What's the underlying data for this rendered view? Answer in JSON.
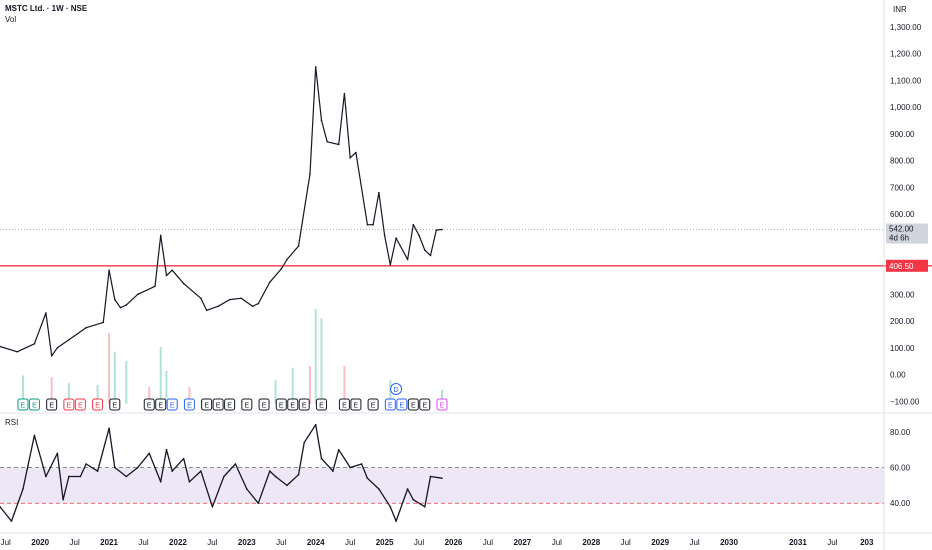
{
  "header": {
    "title": "MSTC Ltd. · 1W · NSE",
    "volume_label": "Vol",
    "currency": "INR"
  },
  "price_axis": {
    "ticks": [
      "1,300.00",
      "1,200.00",
      "1,100.00",
      "1,000.00",
      "900.00",
      "800.00",
      "700.00",
      "600.00",
      "300.00",
      "200.00",
      "100.00",
      "0.00",
      "−100.00"
    ],
    "tick_values": [
      1300,
      1200,
      1100,
      1000,
      900,
      800,
      700,
      600,
      300,
      200,
      100,
      0,
      -100
    ],
    "range": [
      -140,
      1400
    ]
  },
  "last_price": {
    "value": 542.0,
    "label": "542.00",
    "countdown": "4d 6h",
    "color": "#9598a1"
  },
  "horizontal_line": {
    "value": 406.5,
    "label": "406.50",
    "color": "#f23645"
  },
  "events": {
    "badges": [
      {
        "x": "2019-10",
        "text": "E",
        "color": "#089981"
      },
      {
        "x": "2019-12",
        "text": "E",
        "color": "#089981"
      },
      {
        "x": "2020-03",
        "text": "E",
        "color": "#131722"
      },
      {
        "x": "2020-06",
        "text": "E",
        "color": "#f23645"
      },
      {
        "x": "2020-08",
        "text": "E",
        "color": "#f23645"
      },
      {
        "x": "2020-11",
        "text": "E",
        "color": "#f23645"
      },
      {
        "x": "2021-02",
        "text": "E",
        "color": "#131722"
      },
      {
        "x": "2021-08",
        "text": "E",
        "color": "#131722"
      },
      {
        "x": "2021-10",
        "text": "E",
        "color": "#131722"
      },
      {
        "x": "2021-12",
        "text": "E",
        "color": "#2962ff"
      },
      {
        "x": "2022-03",
        "text": "E",
        "color": "#2962ff"
      },
      {
        "x": "2022-06",
        "text": "E",
        "color": "#131722"
      },
      {
        "x": "2022-08",
        "text": "E",
        "color": "#131722"
      },
      {
        "x": "2022-10",
        "text": "E",
        "color": "#131722"
      },
      {
        "x": "2023-01",
        "text": "E",
        "color": "#131722"
      },
      {
        "x": "2023-04",
        "text": "E",
        "color": "#131722"
      },
      {
        "x": "2023-07",
        "text": "E",
        "color": "#131722"
      },
      {
        "x": "2023-09",
        "text": "E",
        "color": "#131722"
      },
      {
        "x": "2023-11",
        "text": "E",
        "color": "#131722"
      },
      {
        "x": "2024-02",
        "text": "E",
        "color": "#131722"
      },
      {
        "x": "2024-06",
        "text": "E",
        "color": "#131722"
      },
      {
        "x": "2024-08",
        "text": "E",
        "color": "#131722"
      },
      {
        "x": "2024-11",
        "text": "E",
        "color": "#131722"
      },
      {
        "x": "2025-02",
        "text": "E",
        "color": "#2962ff"
      },
      {
        "x": "2025-04",
        "text": "E",
        "color": "#2962ff"
      },
      {
        "x": "2025-06",
        "text": "E",
        "color": "#131722"
      },
      {
        "x": "2025-08",
        "text": "E",
        "color": "#131722"
      },
      {
        "x": "2025-11",
        "text": "E",
        "color": "#e040fb"
      }
    ],
    "dividend": {
      "x": "2025-03",
      "text": "D",
      "color": "#2962ff"
    }
  },
  "rsi": {
    "label": "RSI",
    "ticks": [
      "80.00",
      "60.00",
      "40.00"
    ],
    "tick_values": [
      80,
      60,
      40
    ],
    "range": [
      25,
      90
    ],
    "upper": 60,
    "lower": 40,
    "band_color": "#ede7f6"
  },
  "time_axis": {
    "labels": [
      {
        "x": "2019-07",
        "text": "Jul",
        "bold": false
      },
      {
        "x": "2020-01",
        "text": "2020",
        "bold": true
      },
      {
        "x": "2020-07",
        "text": "Jul",
        "bold": false
      },
      {
        "x": "2021-01",
        "text": "2021",
        "bold": true
      },
      {
        "x": "2021-07",
        "text": "Jul",
        "bold": false
      },
      {
        "x": "2022-01",
        "text": "2022",
        "bold": true
      },
      {
        "x": "2022-07",
        "text": "Jul",
        "bold": false
      },
      {
        "x": "2023-01",
        "text": "2023",
        "bold": true
      },
      {
        "x": "2023-07",
        "text": "Jul",
        "bold": false
      },
      {
        "x": "2024-01",
        "text": "2024",
        "bold": true
      },
      {
        "x": "2024-07",
        "text": "Jul",
        "bold": false
      },
      {
        "x": "2025-01",
        "text": "2025",
        "bold": true
      },
      {
        "x": "2025-07",
        "text": "Jul",
        "bold": false
      },
      {
        "x": "2026-01",
        "text": "2026",
        "bold": true
      },
      {
        "x": "2026-07",
        "text": "Jul",
        "bold": false
      },
      {
        "x": "2027-01",
        "text": "2027",
        "bold": true
      },
      {
        "x": "2027-07",
        "text": "Jul",
        "bold": false
      },
      {
        "x": "2028-01",
        "text": "2028",
        "bold": true
      },
      {
        "x": "2028-07",
        "text": "Jul",
        "bold": false
      },
      {
        "x": "2029-01",
        "text": "2029",
        "bold": true
      },
      {
        "x": "2029-07",
        "text": "Jul",
        "bold": false
      },
      {
        "x": "2030-01",
        "text": "2030",
        "bold": true
      },
      {
        "x": "2031-01",
        "text": "2031",
        "bold": true
      },
      {
        "x": "2031-07",
        "text": "Jul",
        "bold": false
      },
      {
        "x": "2032-01",
        "text": "203",
        "bold": true
      }
    ]
  },
  "chart_data": [
    {
      "type": "line",
      "title": "MSTC Ltd. · 1W · NSE",
      "ylabel": "INR",
      "ylim": [
        -140,
        1400
      ],
      "grid": false,
      "series": [
        {
          "name": "MSTC Ltd.",
          "x": [
            "2019-06",
            "2019-09",
            "2019-12",
            "2020-02",
            "2020-03",
            "2020-04",
            "2020-06",
            "2020-09",
            "2020-12",
            "2021-01",
            "2021-02",
            "2021-03",
            "2021-04",
            "2021-06",
            "2021-09",
            "2021-10",
            "2021-11",
            "2021-12",
            "2022-02",
            "2022-05",
            "2022-06",
            "2022-08",
            "2022-10",
            "2022-12",
            "2023-02",
            "2023-03",
            "2023-05",
            "2023-07",
            "2023-08",
            "2023-10",
            "2023-12",
            "2024-01",
            "2024-02",
            "2024-03",
            "2024-05",
            "2024-06",
            "2024-07",
            "2024-08",
            "2024-10",
            "2024-11",
            "2024-12",
            "2025-01",
            "2025-02",
            "2025-03",
            "2025-05",
            "2025-06",
            "2025-07",
            "2025-08",
            "2025-09",
            "2025-10",
            "2025-11"
          ],
          "values": [
            105,
            85,
            115,
            230,
            70,
            100,
            130,
            175,
            195,
            390,
            280,
            250,
            260,
            300,
            330,
            520,
            370,
            390,
            340,
            285,
            240,
            255,
            280,
            285,
            255,
            265,
            345,
            395,
            430,
            480,
            750,
            1150,
            950,
            870,
            860,
            1050,
            810,
            830,
            560,
            560,
            680,
            520,
            410,
            510,
            430,
            560,
            520,
            465,
            445,
            540,
            542
          ]
        },
        {
          "name": "Vol",
          "x": [
            "2019-10",
            "2020-03",
            "2020-06",
            "2020-11",
            "2021-01",
            "2021-02",
            "2021-04",
            "2021-08",
            "2021-10",
            "2021-11",
            "2022-03",
            "2023-06",
            "2023-09",
            "2023-12",
            "2024-01",
            "2024-02",
            "2024-06",
            "2025-02",
            "2025-11"
          ],
          "values": [
            30,
            28,
            22,
            20,
            75,
            55,
            45,
            18,
            60,
            35,
            18,
            25,
            38,
            40,
            100,
            90,
            40,
            25,
            15
          ]
        }
      ]
    },
    {
      "type": "line",
      "title": "RSI",
      "ylim": [
        25,
        90
      ],
      "grid": false,
      "series": [
        {
          "name": "RSI",
          "x": [
            "2019-06",
            "2019-08",
            "2019-10",
            "2019-12",
            "2020-02",
            "2020-04",
            "2020-05",
            "2020-06",
            "2020-08",
            "2020-09",
            "2020-11",
            "2021-01",
            "2021-02",
            "2021-04",
            "2021-06",
            "2021-08",
            "2021-10",
            "2021-11",
            "2021-12",
            "2022-02",
            "2022-03",
            "2022-05",
            "2022-07",
            "2022-09",
            "2022-11",
            "2023-01",
            "2023-03",
            "2023-05",
            "2023-06",
            "2023-08",
            "2023-10",
            "2023-11",
            "2024-01",
            "2024-02",
            "2024-04",
            "2024-05",
            "2024-07",
            "2024-09",
            "2024-10",
            "2024-12",
            "2025-02",
            "2025-03",
            "2025-05",
            "2025-06",
            "2025-08",
            "2025-09",
            "2025-11"
          ],
          "values": [
            38,
            30,
            48,
            78,
            55,
            68,
            42,
            55,
            55,
            62,
            58,
            82,
            60,
            55,
            60,
            68,
            52,
            70,
            58,
            65,
            52,
            58,
            38,
            55,
            62,
            48,
            40,
            58,
            55,
            50,
            56,
            74,
            84,
            65,
            58,
            70,
            60,
            62,
            54,
            48,
            38,
            30,
            48,
            42,
            38,
            55,
            54
          ]
        }
      ]
    }
  ]
}
